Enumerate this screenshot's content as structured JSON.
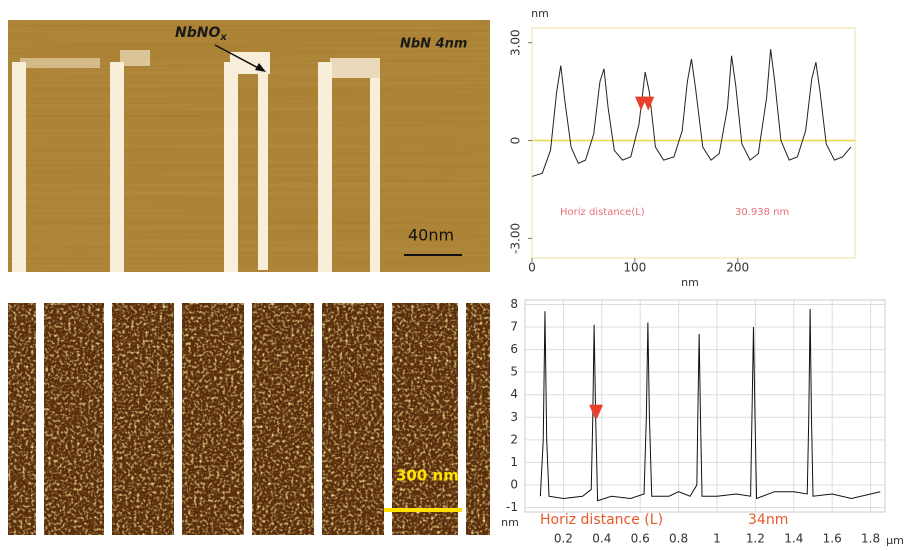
{
  "chart_data": [
    {
      "type": "line",
      "ylabel": "nm",
      "xlabel": "nm",
      "xlim": [
        0,
        314
      ],
      "ylim": [
        -3.6,
        3.45
      ],
      "xticks": [
        0,
        100,
        200
      ],
      "yticks": [
        {
          "value": 3,
          "label": "3.00"
        },
        0,
        {
          "value": -3,
          "label": "-3.00"
        }
      ],
      "grid": false,
      "hline": 0,
      "hline_color": "#e8d84a",
      "frame_color": "#e8e0a0",
      "x": [
        0,
        10,
        18,
        24,
        28,
        32,
        38,
        45,
        52,
        60,
        66,
        70,
        74,
        80,
        88,
        96,
        104,
        110,
        114,
        120,
        128,
        138,
        146,
        151,
        155,
        159,
        166,
        174,
        182,
        190,
        194,
        198,
        204,
        212,
        220,
        228,
        232,
        236,
        242,
        250,
        258,
        266,
        272,
        276,
        280,
        286,
        294,
        302,
        310
      ],
      "series": [
        {
          "color": "#222222",
          "values": [
            -1.1,
            -1.0,
            -0.3,
            1.5,
            2.3,
            1.2,
            -0.2,
            -0.7,
            -0.6,
            0.2,
            1.8,
            2.2,
            1.0,
            -0.3,
            -0.6,
            -0.5,
            0.5,
            2.1,
            1.5,
            -0.2,
            -0.6,
            -0.5,
            0.3,
            1.8,
            2.5,
            1.6,
            -0.2,
            -0.6,
            -0.4,
            1.0,
            2.6,
            1.7,
            -0.1,
            -0.6,
            -0.4,
            1.3,
            2.8,
            1.8,
            0,
            -0.6,
            -0.5,
            0.3,
            1.9,
            2.4,
            1.5,
            -0.1,
            -0.6,
            -0.5,
            -0.2
          ]
        }
      ],
      "cursors": {
        "x": [
          106,
          113
        ],
        "y": [
          1.1,
          1.1
        ],
        "color": "#e8402a"
      },
      "annotations": [
        "Horiz distance(L)",
        "30.938 nm"
      ],
      "annotation_color": "#e8707a"
    },
    {
      "type": "line",
      "ylabel": "nm",
      "xlabel": "µm",
      "xlim": [
        0,
        1.875
      ],
      "ylim": [
        -1.2,
        8.2
      ],
      "xticks": [
        0.2,
        0.4,
        0.6,
        0.8,
        1,
        1.2,
        1.4,
        1.6,
        1.8
      ],
      "yticks": [
        -1,
        0,
        1,
        2,
        3,
        4,
        5,
        6,
        7,
        8
      ],
      "grid": true,
      "frame_color": "#cccccc",
      "x": [
        0.08,
        0.095,
        0.104,
        0.113,
        0.125,
        0.2,
        0.3,
        0.345,
        0.353,
        0.36,
        0.368,
        0.378,
        0.45,
        0.55,
        0.62,
        0.632,
        0.64,
        0.648,
        0.66,
        0.75,
        0.8,
        0.86,
        0.895,
        0.9,
        0.907,
        0.914,
        0.922,
        1.0,
        1.1,
        1.175,
        1.182,
        1.19,
        1.198,
        1.206,
        1.3,
        1.4,
        1.47,
        1.478,
        1.485,
        1.492,
        1.5,
        1.6,
        1.7,
        1.8,
        1.85
      ],
      "series": [
        {
          "color": "#111111",
          "values": [
            -0.5,
            2,
            7.7,
            2,
            -0.5,
            -0.6,
            -0.5,
            -0.2,
            3,
            7.1,
            3,
            -0.7,
            -0.5,
            -0.6,
            -0.4,
            3,
            7.2,
            3,
            -0.5,
            -0.5,
            -0.3,
            -0.5,
            0,
            3,
            6.7,
            3,
            -0.5,
            -0.5,
            -0.4,
            -0.5,
            3,
            7.0,
            3,
            -0.6,
            -0.3,
            -0.3,
            -0.4,
            3,
            7.8,
            3,
            -0.5,
            -0.4,
            -0.6,
            -0.4,
            -0.3
          ]
        }
      ],
      "cursors": {
        "x": [
          0.365,
          0.375
        ],
        "y": [
          3.2,
          3.2
        ],
        "color": "#e8402a"
      },
      "annotations": [
        "Horiz distance (L)",
        "34nm"
      ],
      "annotation_color": "#e85a2a"
    }
  ],
  "images": {
    "top": {
      "annotation": "NbNO",
      "annotation_sub": "x",
      "label": "NbN 4nm",
      "scale_bar": "40nm"
    },
    "bottom": {
      "scale_bar": "300 nm"
    }
  }
}
